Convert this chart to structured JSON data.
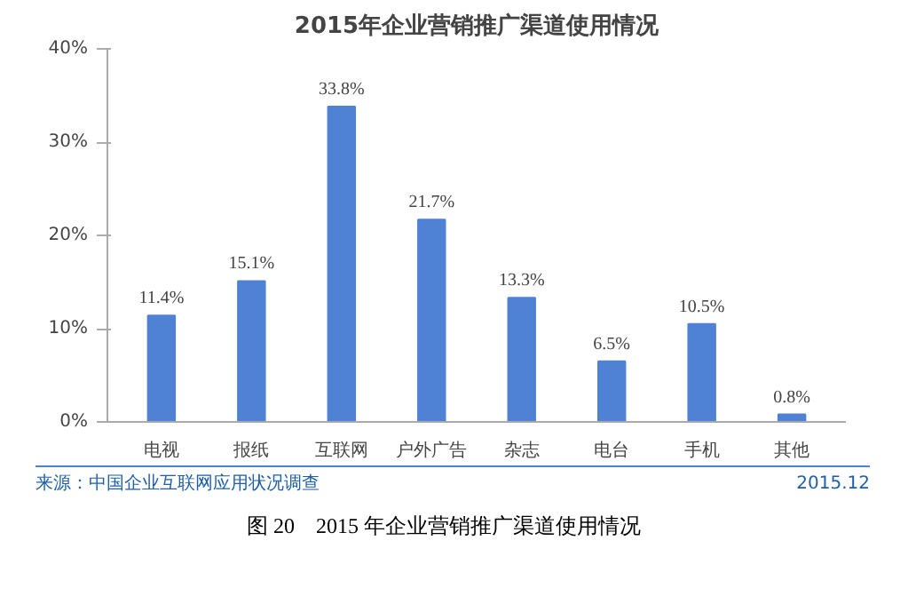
{
  "chart_data": {
    "type": "bar",
    "title": "2015年企业营销推广渠道使用情况",
    "categories": [
      "电视",
      "报纸",
      "互联网",
      "户外广告",
      "杂志",
      "电台",
      "手机",
      "其他"
    ],
    "values": [
      11.4,
      15.1,
      33.8,
      21.7,
      13.3,
      6.5,
      10.5,
      0.8
    ],
    "value_labels": [
      "11.4%",
      "15.1%",
      "33.8%",
      "21.7%",
      "13.3%",
      "6.5%",
      "10.5%",
      "0.8%"
    ],
    "color": "#4f81d4",
    "ylim": [
      0,
      40
    ],
    "yticks": [
      {
        "value": 0,
        "label": "0%"
      },
      {
        "value": 10,
        "label": "10%"
      },
      {
        "value": 20,
        "label": "20%"
      },
      {
        "value": 30,
        "label": "30%"
      },
      {
        "value": 40,
        "label": "40%"
      }
    ],
    "grid": false,
    "annotations": [
      "来源：中国企业互联网应用状况调查",
      "2015.12",
      "图 20　2015 年企业营销推广渠道使用情况"
    ]
  }
}
